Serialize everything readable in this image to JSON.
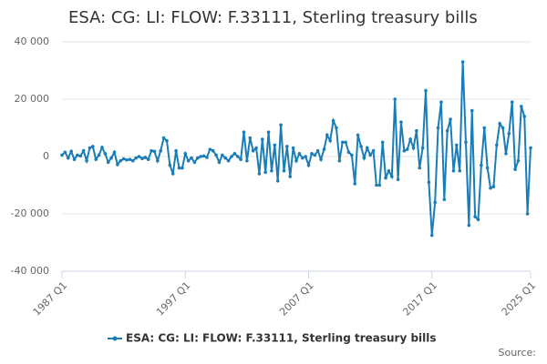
{
  "chart_data": {
    "type": "line",
    "title": "ESA: CG: LI: FLOW: F.33111, Sterling treasury bills",
    "source": "Source:",
    "categories": [
      "1987 Q1",
      null,
      null,
      null,
      null,
      null,
      null,
      null,
      null,
      null,
      null,
      null,
      null,
      null,
      null,
      null,
      null,
      null,
      null,
      null,
      null,
      null,
      null,
      null,
      null,
      null,
      null,
      null,
      null,
      null,
      null,
      null,
      null,
      null,
      null,
      null,
      null,
      null,
      null,
      null,
      "1997 Q1",
      null,
      null,
      null,
      null,
      null,
      null,
      null,
      null,
      null,
      null,
      null,
      null,
      null,
      null,
      null,
      null,
      null,
      null,
      null,
      null,
      null,
      null,
      null,
      null,
      null,
      null,
      null,
      null,
      null,
      null,
      null,
      null,
      null,
      null,
      null,
      null,
      null,
      null,
      null,
      "2007 Q1",
      null,
      null,
      null,
      null,
      null,
      null,
      null,
      null,
      null,
      null,
      null,
      null,
      null,
      null,
      null,
      null,
      null,
      null,
      null,
      null,
      null,
      null,
      null,
      null,
      null,
      null,
      null,
      null,
      null,
      null,
      null,
      null,
      null,
      null,
      null,
      null,
      null,
      null,
      null,
      "2017 Q1",
      null,
      null,
      null,
      null,
      null,
      null,
      null,
      null,
      null,
      null,
      null,
      null,
      null,
      null,
      null,
      null,
      null,
      null,
      null,
      null,
      null,
      null,
      null,
      null,
      null,
      null,
      null,
      null,
      null,
      null,
      null,
      "2025 Q1"
    ],
    "series": [
      {
        "name": "ESA: CG: LI: FLOW: F.33111, Sterling treasury bills",
        "color": "#1a7db8",
        "values": [
          500,
          1500,
          -500,
          1800,
          -1000,
          500,
          200,
          2000,
          -1500,
          3000,
          3500,
          -1000,
          500,
          3200,
          1000,
          -2000,
          -500,
          1500,
          -2800,
          -1500,
          -800,
          -1200,
          -1000,
          -1500,
          -500,
          0,
          -700,
          -300,
          -1000,
          2000,
          1800,
          -1500,
          2000,
          6500,
          5500,
          -3000,
          -6000,
          2000,
          -4000,
          -4000,
          1000,
          -1500,
          -500,
          -2000,
          -500,
          0,
          200,
          -300,
          2500,
          2000,
          500,
          -2000,
          500,
          -500,
          -1500,
          0,
          1000,
          0,
          -1000,
          8500,
          -1500,
          6500,
          2000,
          3000,
          -6000,
          6000,
          -5500,
          8500,
          -5000,
          4000,
          -8500,
          11000,
          -5000,
          3500,
          -7000,
          3000,
          -1500,
          1000,
          -500,
          0,
          -3000,
          1000,
          500,
          2000,
          -1000,
          2500,
          7500,
          5500,
          12500,
          10000,
          -1500,
          5000,
          5000,
          1500,
          500,
          -9500,
          7500,
          3500,
          -500,
          3000,
          500,
          2000,
          -10000,
          -10000,
          5000,
          -7500,
          -5000,
          -7000,
          20000,
          -8000,
          12000,
          2000,
          2500,
          6000,
          3000,
          9000,
          -4000,
          3000,
          23000,
          -9000,
          -27500,
          -16000,
          10000,
          19000,
          -15000,
          9000,
          13000,
          -5000,
          4000,
          -5000,
          33000,
          5000,
          -24000,
          16000,
          -21000,
          -22000,
          -3000,
          10000,
          -4000,
          -11000,
          -10500,
          4000,
          11500,
          10000,
          1000,
          8000,
          19000,
          -4500,
          -1500,
          17500,
          14000,
          -20000,
          3000
        ]
      }
    ],
    "ylim": [
      -40000,
      40000
    ],
    "yticks": [
      {
        "value": -40000,
        "label": "-40 000"
      },
      {
        "value": -20000,
        "label": "-20 000"
      },
      0,
      {
        "value": 20000,
        "label": "20 000"
      },
      {
        "value": 40000,
        "label": "40 000"
      }
    ],
    "grid": true
  }
}
